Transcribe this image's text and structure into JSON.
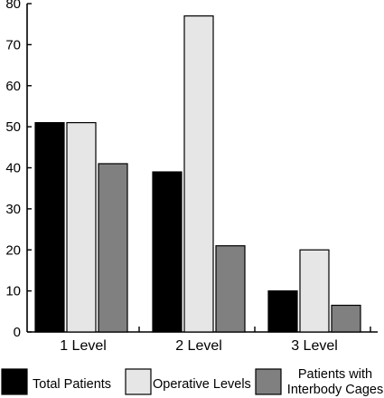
{
  "chart_data": {
    "type": "bar",
    "categories": [
      "1 Level",
      "2 Level",
      "3 Level"
    ],
    "series": [
      {
        "name": "Total Patients",
        "values": [
          51,
          39,
          10
        ],
        "color": "#000000"
      },
      {
        "name": "Operative Levels",
        "values": [
          51,
          77,
          20
        ],
        "color": "#e6e6e6"
      },
      {
        "name": "Patients with Interbody Cages",
        "values": [
          41,
          21,
          6.5
        ],
        "color": "#808080"
      }
    ],
    "title": "",
    "xlabel": "",
    "ylabel": "",
    "ylim": [
      0,
      80
    ],
    "yticks": [
      0,
      10,
      20,
      30,
      40,
      50,
      60,
      70,
      80
    ],
    "grid": false,
    "legend_position": "bottom"
  }
}
